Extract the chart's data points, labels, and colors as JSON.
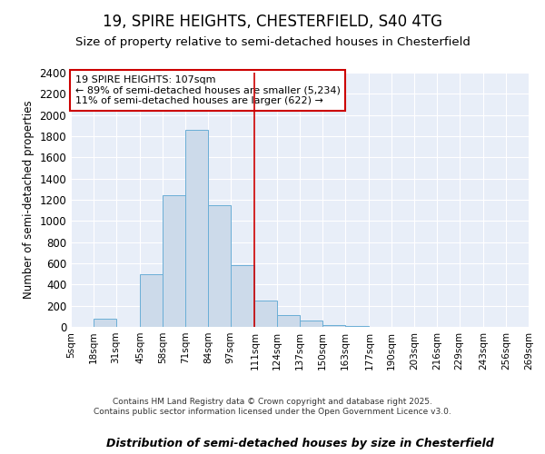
{
  "title1": "19, SPIRE HEIGHTS, CHESTERFIELD, S40 4TG",
  "title2": "Size of property relative to semi-detached houses in Chesterfield",
  "xlabel": "Distribution of semi-detached houses by size in Chesterfield",
  "ylabel": "Number of semi-detached properties",
  "bar_edges": [
    5,
    18,
    31,
    45,
    58,
    71,
    84,
    97,
    111,
    124,
    137,
    150,
    163,
    177,
    190,
    203,
    216,
    229,
    243,
    256,
    269
  ],
  "bar_heights": [
    0,
    80,
    0,
    500,
    1240,
    1860,
    1145,
    580,
    245,
    110,
    60,
    20,
    5,
    0,
    0,
    0,
    0,
    0,
    0,
    0
  ],
  "bar_color": "#ccdaea",
  "bar_edgecolor": "#6aaed6",
  "vline_x": 111,
  "vline_color": "#cc0000",
  "annotation_text": "19 SPIRE HEIGHTS: 107sqm\n← 89% of semi-detached houses are smaller (5,234)\n11% of semi-detached houses are larger (622) →",
  "annotation_box_color": "#ffffff",
  "annotation_box_edgecolor": "#cc0000",
  "ylim": [
    0,
    2400
  ],
  "yticks": [
    0,
    200,
    400,
    600,
    800,
    1000,
    1200,
    1400,
    1600,
    1800,
    2000,
    2200,
    2400
  ],
  "bg_color": "#e8eef8",
  "footer_text": "Contains HM Land Registry data © Crown copyright and database right 2025.\nContains public sector information licensed under the Open Government Licence v3.0.",
  "tick_labels": [
    "5sqm",
    "18sqm",
    "31sqm",
    "45sqm",
    "58sqm",
    "71sqm",
    "84sqm",
    "97sqm",
    "111sqm",
    "124sqm",
    "137sqm",
    "150sqm",
    "163sqm",
    "177sqm",
    "190sqm",
    "203sqm",
    "216sqm",
    "229sqm",
    "243sqm",
    "256sqm",
    "269sqm"
  ]
}
